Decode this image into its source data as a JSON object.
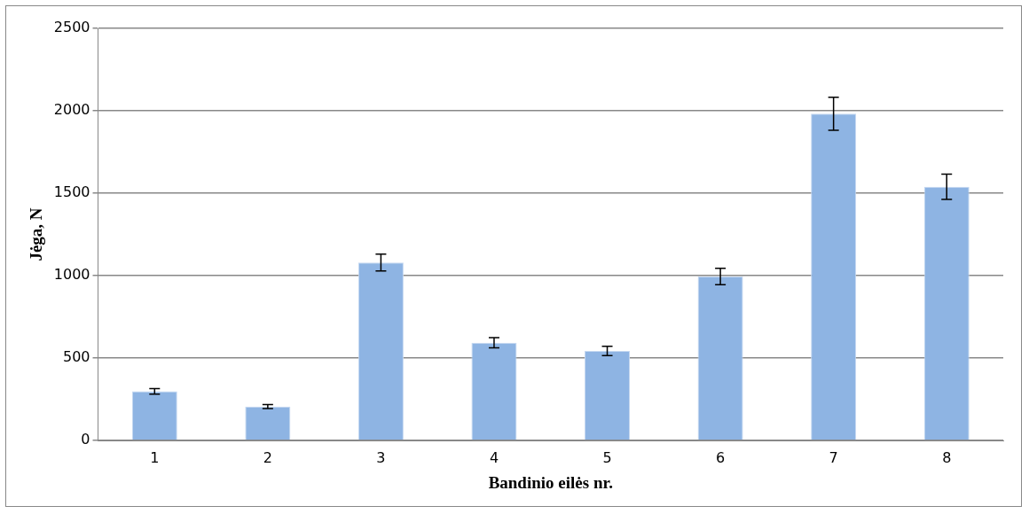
{
  "chart_data": {
    "type": "bar",
    "xlabel": "Bandinio eilės nr.",
    "ylabel": "Jėga, N",
    "categories": [
      "1",
      "2",
      "3",
      "4",
      "5",
      "6",
      "7",
      "8"
    ],
    "values": [
      298,
      206,
      1079,
      593,
      543,
      995,
      1982,
      1539
    ],
    "errors": [
      17,
      12,
      51,
      31,
      28,
      50,
      100,
      77
    ],
    "color": "#8eb4e3",
    "ylim": [
      0,
      2500
    ],
    "yticks": [
      0,
      500,
      1000,
      1500,
      2000,
      2500
    ],
    "grid": "y"
  }
}
